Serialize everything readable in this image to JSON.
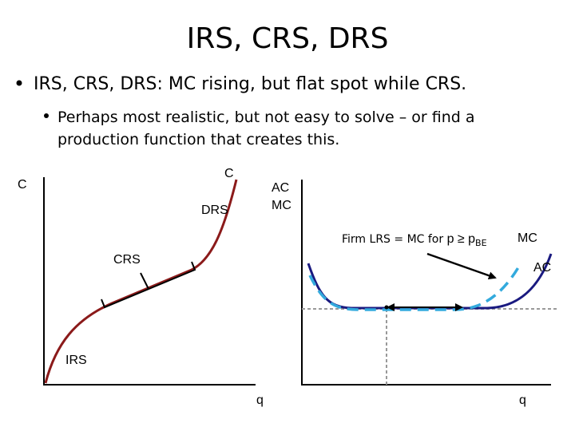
{
  "header": {
    "title": "IRS, CRS, DRS"
  },
  "bullets": [
    {
      "text": "IRS, CRS, DRS: MC rising, but flat spot while CRS."
    },
    {
      "lines": [
        "Perhaps most realistic, but not easy to solve – or find a",
        "production function that creates this."
      ]
    }
  ],
  "left_graph": {
    "y_axis_label": "C",
    "curve_label": "C",
    "labels": [
      "DRS",
      "CRS",
      "IRS"
    ],
    "x_axis_label": "q"
  },
  "right_graph": {
    "y_axis_labels": [
      "AC",
      "MC"
    ],
    "annotation": {
      "text": "Firm LRS = MC for ",
      "condition": "p ≥ p",
      "subscript": "BE"
    },
    "curve_labels": [
      "MC",
      "AC"
    ],
    "x_axis_label": "q"
  }
}
